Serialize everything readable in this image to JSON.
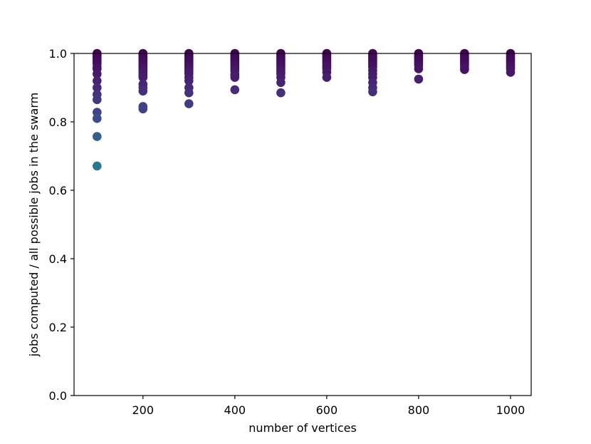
{
  "chart_data": {
    "type": "scatter",
    "title": "",
    "xlabel": "number of vertices",
    "ylabel": "jobs computed / all possible jobs in the swarm",
    "xlim": [
      50,
      1045
    ],
    "ylim": [
      0.0,
      1.0
    ],
    "xticks": [
      200,
      400,
      600,
      800,
      1000
    ],
    "yticks": [
      0.0,
      0.2,
      0.4,
      0.6,
      0.8,
      1.0
    ],
    "xtick_labels": [
      "200",
      "400",
      "600",
      "800",
      "1000"
    ],
    "ytick_labels": [
      "0.0",
      "0.2",
      "0.4",
      "0.6",
      "0.8",
      "1.0"
    ],
    "grid": false,
    "colormap": "viridis",
    "series": [
      {
        "x": 100,
        "y": [
          1.0,
          0.995,
          0.99,
          0.985,
          0.98,
          0.975,
          0.97,
          0.96,
          0.955,
          0.94,
          0.92,
          0.9,
          0.88,
          0.865,
          0.828,
          0.81,
          0.757,
          0.671
        ]
      },
      {
        "x": 200,
        "y": [
          1.0,
          0.995,
          0.99,
          0.985,
          0.98,
          0.975,
          0.97,
          0.965,
          0.96,
          0.955,
          0.95,
          0.945,
          0.94,
          0.935,
          0.93,
          0.91,
          0.9,
          0.89,
          0.845,
          0.838
        ]
      },
      {
        "x": 300,
        "y": [
          1.0,
          0.995,
          0.99,
          0.985,
          0.98,
          0.975,
          0.97,
          0.965,
          0.96,
          0.955,
          0.95,
          0.945,
          0.94,
          0.93,
          0.92,
          0.9,
          0.885,
          0.853
        ]
      },
      {
        "x": 400,
        "y": [
          1.0,
          0.995,
          0.99,
          0.985,
          0.98,
          0.975,
          0.97,
          0.965,
          0.96,
          0.955,
          0.95,
          0.94,
          0.935,
          0.93,
          0.894
        ]
      },
      {
        "x": 500,
        "y": [
          1.0,
          0.995,
          0.99,
          0.985,
          0.98,
          0.975,
          0.97,
          0.965,
          0.96,
          0.955,
          0.95,
          0.945,
          0.94,
          0.93,
          0.915,
          0.885
        ]
      },
      {
        "x": 600,
        "y": [
          1.0,
          0.995,
          0.99,
          0.985,
          0.98,
          0.975,
          0.97,
          0.965,
          0.96,
          0.955,
          0.945,
          0.93
        ]
      },
      {
        "x": 700,
        "y": [
          1.0,
          0.995,
          0.99,
          0.985,
          0.98,
          0.975,
          0.97,
          0.965,
          0.96,
          0.95,
          0.94,
          0.93,
          0.915,
          0.9,
          0.888
        ]
      },
      {
        "x": 800,
        "y": [
          1.0,
          0.995,
          0.99,
          0.985,
          0.98,
          0.975,
          0.97,
          0.965,
          0.955,
          0.925
        ]
      },
      {
        "x": 900,
        "y": [
          1.0,
          0.995,
          0.99,
          0.985,
          0.98,
          0.975,
          0.97,
          0.965,
          0.958,
          0.953
        ]
      },
      {
        "x": 1000,
        "y": [
          1.0,
          0.995,
          0.99,
          0.985,
          0.98,
          0.975,
          0.97,
          0.965,
          0.96,
          0.955,
          0.945
        ]
      }
    ]
  }
}
